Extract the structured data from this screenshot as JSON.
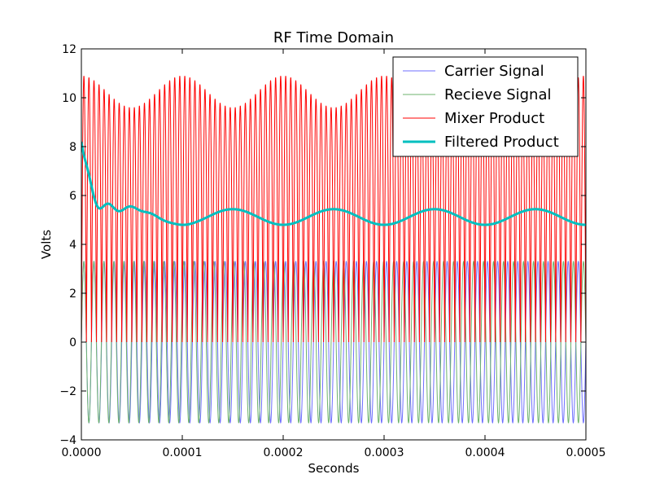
{
  "chart_data": {
    "type": "line",
    "title": "RF Time Domain",
    "xlabel": "Seconds",
    "ylabel": "Volts",
    "xlim": [
      0.0,
      0.0005
    ],
    "ylim": [
      -4,
      12
    ],
    "xticks": [
      0.0,
      0.0001,
      0.0002,
      0.0003,
      0.0004,
      0.0005
    ],
    "xtick_labels": [
      "0.0000",
      "0.0001",
      "0.0002",
      "0.0003",
      "0.0004",
      "0.0005"
    ],
    "yticks": [
      -4,
      -2,
      0,
      2,
      4,
      6,
      8,
      10,
      12
    ],
    "ytick_labels": [
      "−4",
      "−2",
      "0",
      "2",
      "4",
      "6",
      "8",
      "10",
      "12"
    ],
    "grid": false,
    "legend_position": "top-right",
    "series": [
      {
        "name": "Carrier Signal",
        "color": "#6f6fff",
        "line_width": "thin",
        "description": "sinusoid, amplitude 3.3 V, frequency 100 kHz (50 cycles over 0.0005 s)",
        "amplitude": 3.3,
        "frequency_hz": 100000
      },
      {
        "name": "Recieve Signal",
        "color": "#6db36d",
        "line_width": "thin",
        "description": "sinusoid, amplitude 3.3 V, frequency 101 kHz",
        "amplitude": 3.3,
        "frequency_hz": 101000
      },
      {
        "name": "Mixer Product",
        "color": "#ff0000",
        "line_width": "thin",
        "description": "rectified mixer output oscillating between 0 and ~10.9 V, envelope dips to ~9.6 V with 10 kHz period",
        "peak_max": 10.9,
        "peak_min_envelope": 9.6,
        "trough": 0
      },
      {
        "name": "Filtered Product",
        "color": "#00bfbf",
        "line_width": "thick",
        "description": "low-pass filtered mixer product: initial transient from ~8 V settling to ~5.1 V mean with 0.32 V amplitude ripple at 10 kHz",
        "mean": 5.12,
        "ripple_amplitude": 0.32,
        "ripple_frequency_hz": 10000,
        "initial_value": 8.2
      }
    ]
  }
}
